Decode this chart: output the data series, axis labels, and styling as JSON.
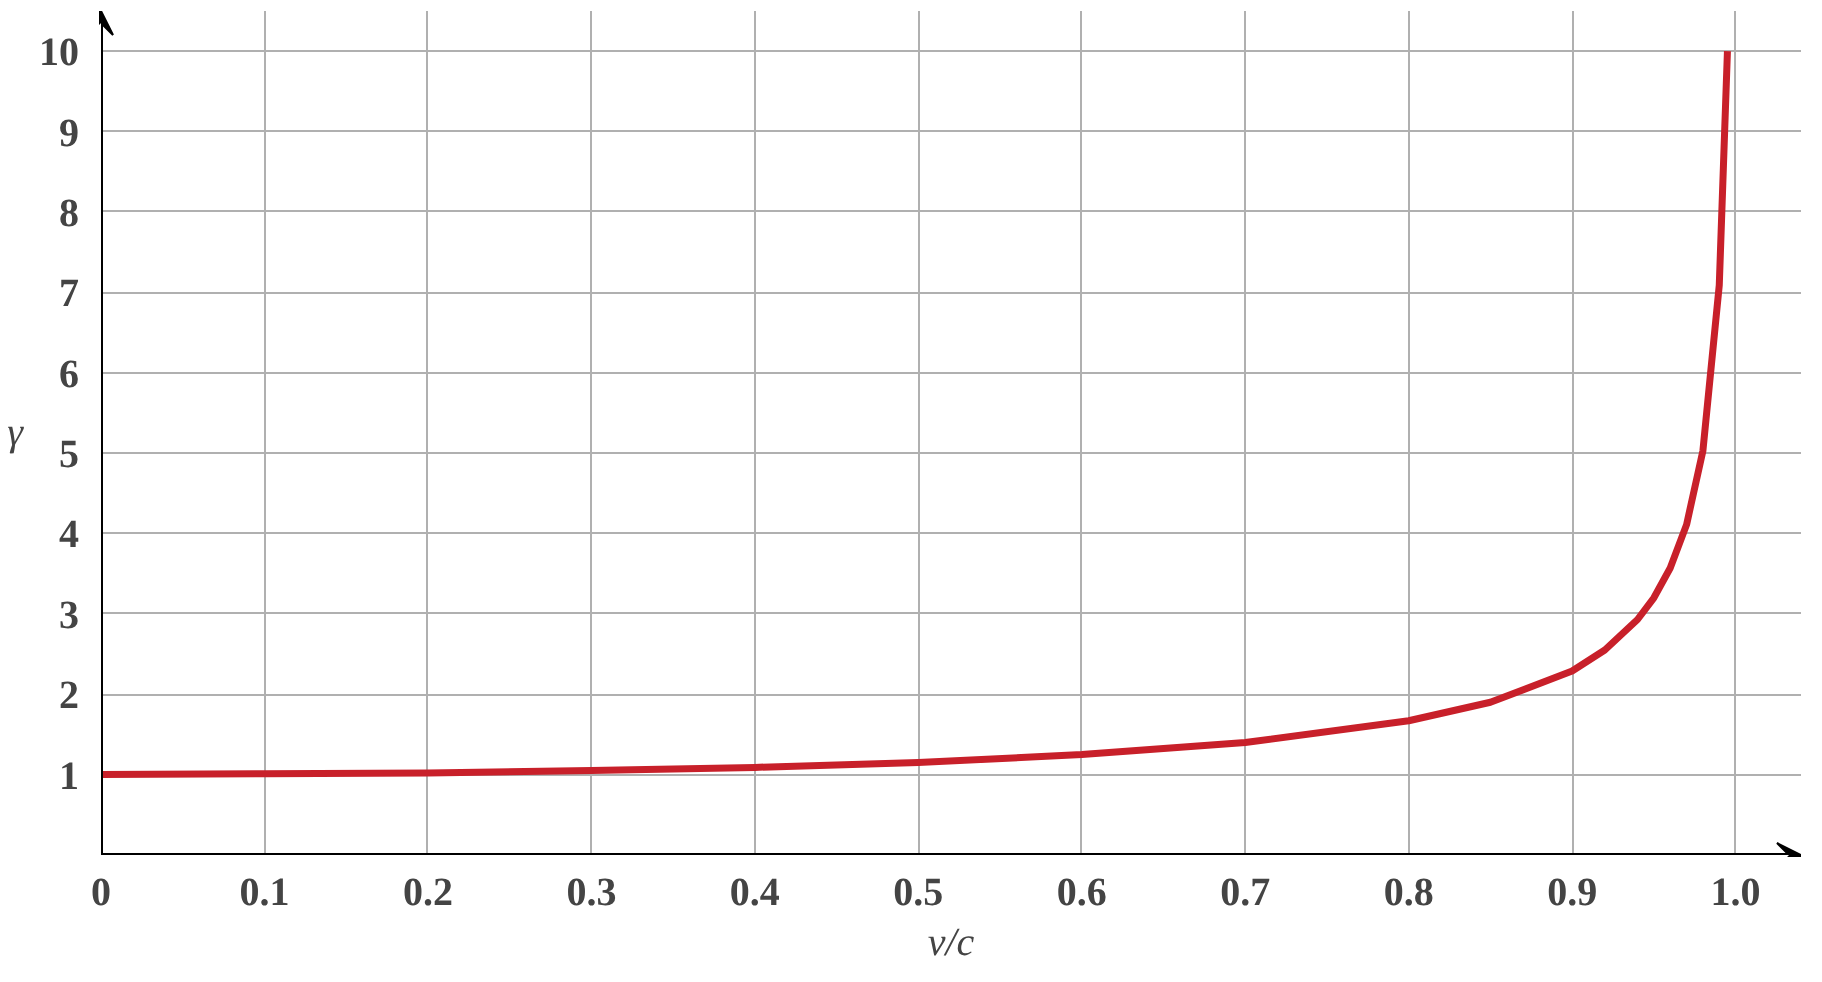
{
  "chart_data": {
    "type": "line",
    "xlabel": "v/c",
    "ylabel": "γ",
    "x": [
      0,
      0.1,
      0.2,
      0.3,
      0.4,
      0.5,
      0.6,
      0.7,
      0.8,
      0.85,
      0.9,
      0.92,
      0.94,
      0.95,
      0.96,
      0.97,
      0.98,
      0.99,
      0.995
    ],
    "series": [
      {
        "color": "#c8202a",
        "values": [
          1,
          1.01,
          1.02,
          1.05,
          1.09,
          1.15,
          1.25,
          1.4,
          1.67,
          1.9,
          2.29,
          2.55,
          2.93,
          3.2,
          3.57,
          4.11,
          5.03,
          7.09,
          10
        ]
      }
    ],
    "xlim": [
      0,
      1.04
    ],
    "ylim": [
      0,
      10.5
    ],
    "xticks": [
      0,
      0.1,
      0.2,
      0.3,
      0.4,
      0.5,
      0.6,
      0.7,
      0.8,
      0.9,
      {
        "value": 1,
        "label": "1.0"
      }
    ],
    "yticks": [
      1,
      2,
      3,
      4,
      5,
      6,
      7,
      8,
      9,
      10
    ],
    "grid": true,
    "marker": "none",
    "line_style": "solid"
  }
}
